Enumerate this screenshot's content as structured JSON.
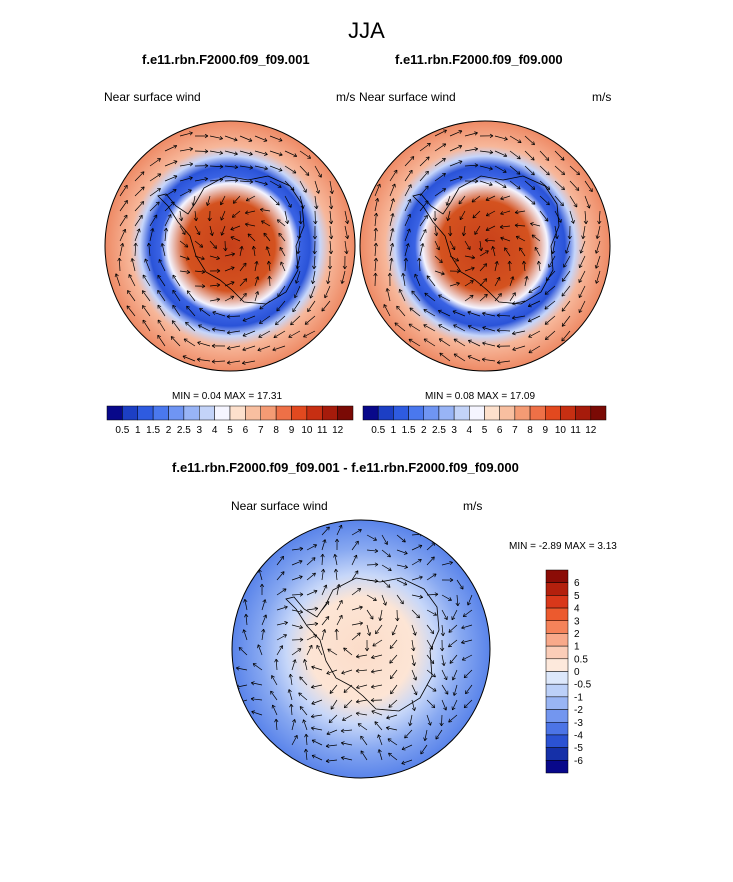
{
  "season": "JJA",
  "panels": [
    {
      "title": "f.e11.rbn.F2000.f09_f09.001",
      "variable": "Near surface wind",
      "units": "m/s",
      "min_max": "MIN =   0.04 MAX =  17.31"
    },
    {
      "title": "f.e11.rbn.F2000.f09_f09.000",
      "variable": "Near surface wind",
      "units": "m/s",
      "min_max": "MIN =   0.08 MAX =  17.09"
    },
    {
      "title": "f.e11.rbn.F2000.f09_f09.001 - f.e11.rbn.F2000.f09_f09.000",
      "variable": "Near surface wind",
      "units": "m/s",
      "min_max": "MIN =  -2.89 MAX =   3.13"
    }
  ],
  "chart_data": [
    {
      "type": "heatmap",
      "projection": "south-polar-stereographic",
      "title": "f.e11.rbn.F2000.f09_f09.001",
      "variable": "Near surface wind",
      "units": "m/s",
      "min": 0.04,
      "max": 17.31,
      "colorbar": {
        "orientation": "horizontal",
        "levels": [
          "0.5",
          "1",
          "1.5",
          "2",
          "2.5",
          "3",
          "4",
          "5",
          "6",
          "7",
          "8",
          "9",
          "10",
          "11",
          "12"
        ],
        "colors": [
          "#08088a",
          "#1c3fc4",
          "#2e5be0",
          "#4a78ee",
          "#6f95f3",
          "#98b4f6",
          "#c3d3f8",
          "#f5f5ff",
          "#fde0cc",
          "#f8bfa0",
          "#f49b74",
          "#ee7047",
          "#e2491f",
          "#c72f12",
          "#a61b0b",
          "#7a0a05"
        ]
      }
    },
    {
      "type": "heatmap",
      "projection": "south-polar-stereographic",
      "title": "f.e11.rbn.F2000.f09_f09.000",
      "variable": "Near surface wind",
      "units": "m/s",
      "min": 0.08,
      "max": 17.09,
      "colorbar": {
        "orientation": "horizontal",
        "levels": [
          "0.5",
          "1",
          "1.5",
          "2",
          "2.5",
          "3",
          "4",
          "5",
          "6",
          "7",
          "8",
          "9",
          "10",
          "11",
          "12"
        ],
        "colors": [
          "#08088a",
          "#1c3fc4",
          "#2e5be0",
          "#4a78ee",
          "#6f95f3",
          "#98b4f6",
          "#c3d3f8",
          "#f5f5ff",
          "#fde0cc",
          "#f8bfa0",
          "#f49b74",
          "#ee7047",
          "#e2491f",
          "#c72f12",
          "#a61b0b",
          "#7a0a05"
        ]
      }
    },
    {
      "type": "heatmap",
      "projection": "south-polar-stereographic",
      "title": "f.e11.rbn.F2000.f09_f09.001 - f.e11.rbn.F2000.f09_f09.000",
      "variable": "Near surface wind",
      "units": "m/s",
      "min": -2.89,
      "max": 3.13,
      "colorbar": {
        "orientation": "vertical",
        "levels": [
          "6",
          "5",
          "4",
          "3",
          "2",
          "1",
          "0.5",
          "0",
          "-0.5",
          "-1",
          "-2",
          "-3",
          "-4",
          "-5",
          "-6"
        ],
        "colors": [
          "#8b0c06",
          "#b3200d",
          "#d9381a",
          "#ec5a2e",
          "#f5835a",
          "#f8a98a",
          "#fbcdb8",
          "#fde9dc",
          "#dde8fb",
          "#bcd0f8",
          "#99b5f4",
          "#7396ef",
          "#4c74e6",
          "#2b52d3",
          "#1530a8",
          "#08088a"
        ]
      }
    }
  ]
}
